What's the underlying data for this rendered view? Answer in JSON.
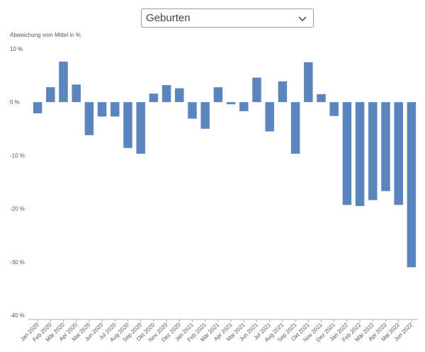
{
  "dropdown": {
    "selected": "Geburten",
    "icon": "chevron-down-icon"
  },
  "chart_data": {
    "type": "bar",
    "ylabel": "Abweichung vom Mittel in %",
    "xlabel": "",
    "ylim": [
      -40,
      10
    ],
    "yticks": [
      10,
      0,
      -10,
      -20,
      -30,
      -40
    ],
    "ytick_labels": [
      "10 %",
      "0 %",
      "-10 %",
      "-20 %",
      "-30 %",
      "-40 %"
    ],
    "grid": false,
    "bar_color": "#5a86bd",
    "categories": [
      "Jan 2020",
      "Feb 2020",
      "Mär 2020",
      "Apr 2020",
      "Mai 2020",
      "Jun 2020",
      "Jul 2020",
      "Aug 2020",
      "Sep 2020",
      "Okt 2020",
      "Nov 2020",
      "Dez 2020",
      "Jan 2021",
      "Feb 2021",
      "Mär 2021",
      "Apr 2021",
      "Mai 2021",
      "Jun 2021",
      "Jul 2021",
      "Aug 2021",
      "Sep 2021",
      "Okt 2021",
      "Nov 2021",
      "Dez 2021",
      "Jan 2022",
      "Feb 2022",
      "Mär 2022",
      "Apr 2022",
      "Mai 2022",
      "Jun 2022"
    ],
    "values": [
      -2.1,
      2.8,
      7.6,
      3.3,
      -6.2,
      -2.7,
      -2.7,
      -8.6,
      -9.7,
      1.6,
      3.2,
      2.6,
      -3.1,
      -5.0,
      2.8,
      -0.4,
      -1.7,
      4.6,
      -5.5,
      3.9,
      -9.7,
      7.5,
      1.5,
      -2.6,
      -19.3,
      -19.5,
      -18.4,
      -16.7,
      -19.3,
      -31.0
    ]
  }
}
